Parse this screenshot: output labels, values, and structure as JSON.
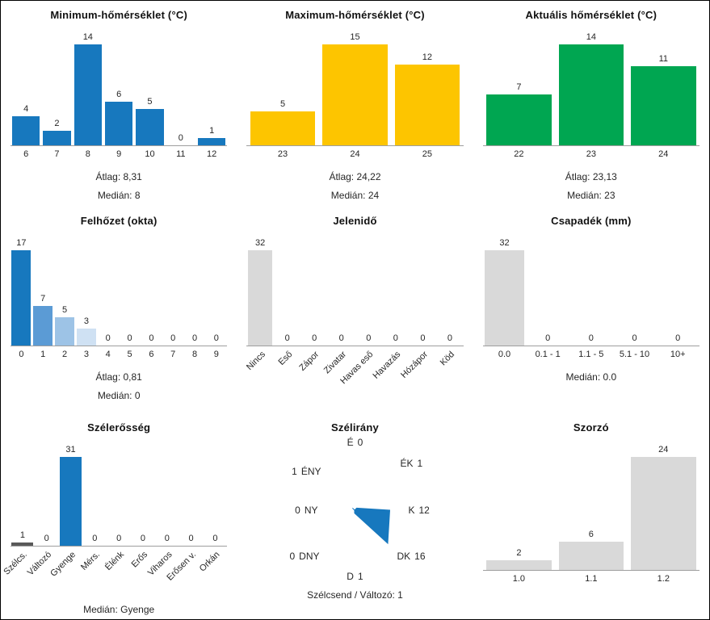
{
  "page": {
    "background": "#ffffff",
    "border_color": "#000000"
  },
  "colors": {
    "blue": "#1778be",
    "yellow": "#fdc500",
    "green": "#00a651",
    "gray": "#d9d9d9",
    "dark_gray": "#595959"
  },
  "chart_data": [
    {
      "type": "bar",
      "title": "Minimum-hőmérséklet (°C)",
      "categories": [
        "6",
        "7",
        "8",
        "9",
        "10",
        "11",
        "12"
      ],
      "values": [
        4,
        2,
        14,
        6,
        5,
        0,
        1
      ],
      "bar_color": "#1778be",
      "ylim": [
        0,
        14
      ],
      "stats": [
        "Átlag: 8,31",
        "Medián: 8"
      ]
    },
    {
      "type": "bar",
      "title": "Maximum-hőmérséklet (°C)",
      "categories": [
        "23",
        "24",
        "25"
      ],
      "values": [
        5,
        15,
        12
      ],
      "bar_color": "#fdc500",
      "ylim": [
        0,
        15
      ],
      "stats": [
        "Átlag: 24,22",
        "Medián: 24"
      ]
    },
    {
      "type": "bar",
      "title": "Aktuális hőmérséklet (°C)",
      "categories": [
        "22",
        "23",
        "24"
      ],
      "values": [
        7,
        14,
        11
      ],
      "bar_color": "#00a651",
      "ylim": [
        0,
        14
      ],
      "stats": [
        "Átlag: 23,13",
        "Medián: 23"
      ]
    },
    {
      "type": "bar",
      "title": "Felhőzet (okta)",
      "categories": [
        "0",
        "1",
        "2",
        "3",
        "4",
        "5",
        "6",
        "7",
        "8",
        "9"
      ],
      "values": [
        17,
        7,
        5,
        3,
        0,
        0,
        0,
        0,
        0,
        0
      ],
      "colors": [
        "#1778be",
        "#5b9bd5",
        "#9dc3e6",
        "#cfe1f3",
        "#d9d9d9",
        "#d9d9d9",
        "#d9d9d9",
        "#d9d9d9",
        "#d9d9d9",
        "#d9d9d9"
      ],
      "ylim": [
        0,
        17
      ],
      "stats": [
        "Átlag: 0,81",
        "Medián: 0"
      ]
    },
    {
      "type": "bar",
      "title": "Jelenidő",
      "categories": [
        "Nincs",
        "Eső",
        "Zápor",
        "Zivatar",
        "Havas eső",
        "Havazás",
        "Hózápor",
        "Köd"
      ],
      "values": [
        32,
        0,
        0,
        0,
        0,
        0,
        0,
        0
      ],
      "bar_color": "#d9d9d9",
      "tick_rotation": 45,
      "ylim": [
        0,
        32
      ],
      "stats": []
    },
    {
      "type": "bar",
      "title": "Csapadék (mm)",
      "categories": [
        "0.0",
        "0.1 - 1",
        "1.1 - 5",
        "5.1 - 10",
        "10+"
      ],
      "values": [
        32,
        0,
        0,
        0,
        0
      ],
      "bar_color": "#d9d9d9",
      "ylim": [
        0,
        32
      ],
      "stats": [
        "Medián: 0.0"
      ]
    },
    {
      "type": "bar",
      "title": "Szélerősség",
      "categories": [
        "Szélcs.",
        "Változó",
        "Gyenge",
        "Mérs.",
        "Élénk",
        "Erős",
        "Viharos",
        "Erősen v.",
        "Orkán"
      ],
      "values": [
        1,
        0,
        31,
        0,
        0,
        0,
        0,
        0,
        0
      ],
      "colors": [
        "#595959",
        "#d9d9d9",
        "#1778be",
        "#d9d9d9",
        "#d9d9d9",
        "#d9d9d9",
        "#d9d9d9",
        "#d9d9d9",
        "#d9d9d9"
      ],
      "tick_rotation": 45,
      "ylim": [
        0,
        31
      ],
      "stats": [
        "Medián: Gyenge"
      ]
    },
    {
      "type": "radar",
      "title": "Szélirány",
      "directions": [
        {
          "name": "É",
          "value": 0,
          "pos": "n"
        },
        {
          "name": "ÉK",
          "value": 1,
          "pos": "ne"
        },
        {
          "name": "K",
          "value": 12,
          "pos": "e"
        },
        {
          "name": "DK",
          "value": 16,
          "pos": "se"
        },
        {
          "name": "D",
          "value": 1,
          "pos": "s"
        },
        {
          "name": "DNY",
          "value": 0,
          "pos": "sw"
        },
        {
          "name": "NY",
          "value": 0,
          "pos": "w"
        },
        {
          "name": "ÉNY",
          "value": 1,
          "pos": "nw"
        }
      ],
      "fill_color": "#1778be",
      "stats": [
        "Szélcsend / Változó: 1"
      ]
    },
    {
      "type": "bar",
      "title": "Szorzó",
      "categories": [
        "1.0",
        "1.1",
        "1.2"
      ],
      "values": [
        2,
        6,
        24
      ],
      "bar_color": "#d9d9d9",
      "ylim": [
        0,
        24
      ],
      "stats": []
    }
  ]
}
